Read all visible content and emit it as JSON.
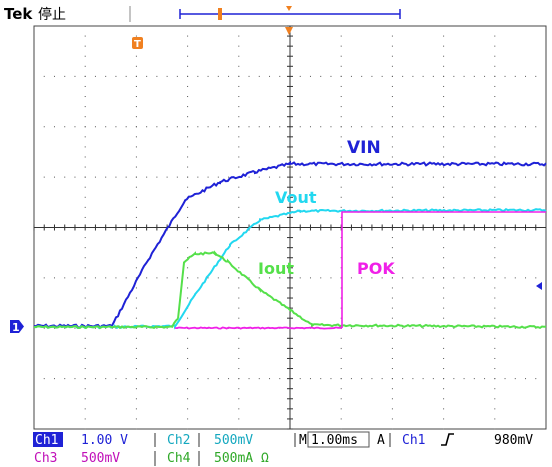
{
  "header": {
    "brand": "Tek",
    "state": "停止"
  },
  "trigger_marker_label": "T",
  "channel1_marker_label": "1",
  "traces": [
    {
      "id": "vin",
      "label": "VIN",
      "color": "#1f22d6"
    },
    {
      "id": "vout",
      "label": "Vout",
      "color": "#22d8f0"
    },
    {
      "id": "iout",
      "label": "Iout",
      "color": "#55e04a"
    },
    {
      "id": "pok",
      "label": "POK",
      "color": "#f020e8"
    }
  ],
  "status": {
    "ch1_name": "Ch1",
    "ch1_scale": "1.00 V",
    "ch2_name": "Ch2",
    "ch2_scale": "500mV",
    "timebase_prefix": "M",
    "timebase": "1.00ms",
    "trigger_mode": "A",
    "trigger_source": "Ch1",
    "trigger_level": "980mV",
    "ch3_name": "Ch3",
    "ch3_scale": "500mV",
    "ch4_name": "Ch4",
    "ch4_scale": "500mA Ω"
  },
  "colors": {
    "background": "#ffffff",
    "grid": "#333333",
    "ch1": "#1f22d6",
    "ch2": "#22d8f0",
    "ch3": "#f020e8",
    "ch4": "#55e04a",
    "trigger": "#f08020"
  }
}
